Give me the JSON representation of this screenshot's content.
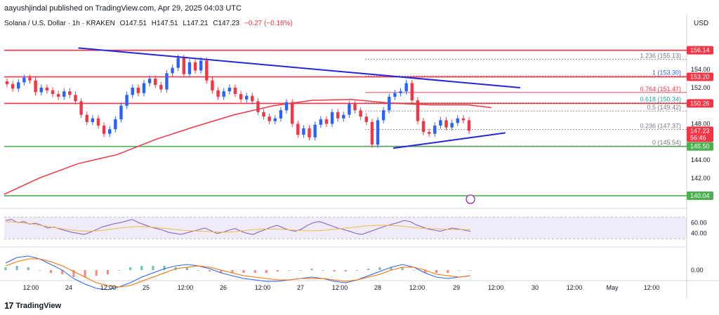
{
  "header": {
    "publisher": "aayushjindal published on TradingView.com, Apr 29, 2025 04:03 UTC"
  },
  "legend": {
    "symbol": "Solana / U.S. Dollar · 1h · KRAKEN",
    "open": "O147.51",
    "high": "H147.51",
    "low": "L147.21",
    "close": "C147.23",
    "change": "−0.27 (−0.18%)"
  },
  "currency": "USD",
  "footer": {
    "brand": "TradingView",
    "logo": "17"
  },
  "colors": {
    "up": "#2962ff",
    "down": "#f23645",
    "ma": "#f23645",
    "trendline": "#2525d9",
    "support": "#4caf50",
    "resistance": "#f23645",
    "fib": "#9c27b0",
    "rsi": "#7e57c2",
    "rsi_ma": "#f0b84a",
    "macd": "#2962ff",
    "signal": "#ff6d00"
  },
  "chart_data": {
    "type": "candlestick",
    "y_range": [
      138.8,
      158.6
    ],
    "price_axis_ticks": [
      "154.00",
      "152.00",
      "148.00",
      "144.00",
      "142.00"
    ],
    "x_axis_labels": [
      "12:00",
      "24",
      "12:00",
      "25",
      "12:00",
      "26",
      "12:00",
      "27",
      "12:00",
      "28",
      "12:00",
      "29",
      "12:00",
      "30",
      "12:00",
      "May",
      "12:00"
    ],
    "price_tags": [
      {
        "label": "156.14",
        "value": 156.14,
        "color": "#f23645"
      },
      {
        "label": "153.20",
        "value": 153.2,
        "color": "#f23645"
      },
      {
        "label": "150.26",
        "value": 150.26,
        "color": "#f23645"
      },
      {
        "label": "147.23",
        "value": 147.23,
        "color": "#f23645",
        "sub": "56:46"
      },
      {
        "label": "145.50",
        "value": 145.5,
        "color": "#4caf50"
      },
      {
        "label": "140.04",
        "value": 140.04,
        "color": "#4caf50"
      }
    ],
    "horizontal_levels": [
      {
        "value": 156.14,
        "kind": "resistance"
      },
      {
        "value": 153.2,
        "kind": "resistance"
      },
      {
        "value": 150.26,
        "kind": "resistance"
      },
      {
        "value": 145.5,
        "kind": "support"
      },
      {
        "value": 140.04,
        "kind": "support"
      }
    ],
    "fibonacci": [
      {
        "ratio": "1.236",
        "label": "1.236 (155.13)",
        "value": 155.13
      },
      {
        "ratio": "1",
        "label": "1 (153.30)",
        "value": 153.3
      },
      {
        "ratio": "0.764",
        "label": "0.764 (151.47)",
        "value": 151.47
      },
      {
        "ratio": "0.618",
        "label": "0.618 (150.34)",
        "value": 150.34
      },
      {
        "ratio": "0.5",
        "label": "0.5 (149.42)",
        "value": 149.42
      },
      {
        "ratio": "0.236",
        "label": "0.236 (147.37)",
        "value": 147.37
      },
      {
        "ratio": "0",
        "label": "0 (145.54)",
        "value": 145.54
      }
    ],
    "trendlines": [
      {
        "name": "upper",
        "points": [
          [
            24.0,
            156.4
          ],
          [
            29.67,
            152.0
          ]
        ]
      },
      {
        "name": "lower",
        "points": [
          [
            28.04,
            145.3
          ],
          [
            29.48,
            147.0
          ]
        ]
      }
    ],
    "candle_closes": [
      152.4,
      151.9,
      152.6,
      153.1,
      152.8,
      151.5,
      152.0,
      151.7,
      151.3,
      151.0,
      151.6,
      151.2,
      150.5,
      149.0,
      148.2,
      148.6,
      147.8,
      146.9,
      147.4,
      148.5,
      150.0,
      151.2,
      152.0,
      151.4,
      152.5,
      153.0,
      152.3,
      151.8,
      153.6,
      154.2,
      155.3,
      153.5,
      154.8,
      153.9,
      155.0,
      152.8,
      151.7,
      151.0,
      151.6,
      152.0,
      151.3,
      150.7,
      151.1,
      150.5,
      149.3,
      148.8,
      148.3,
      148.6,
      149.5,
      150.4,
      148.0,
      146.8,
      147.5,
      146.5,
      147.9,
      148.5,
      148.0,
      149.3,
      148.6,
      149.0,
      150.2,
      149.5,
      148.8,
      148.2,
      145.7,
      148.4,
      149.5,
      151.0,
      151.4,
      151.6,
      152.5,
      150.6,
      148.3,
      147.1,
      146.9,
      147.8,
      148.4,
      147.6,
      148.1,
      148.6,
      148.4,
      147.23
    ],
    "moving_average": [
      [
        23.05,
        140.2
      ],
      [
        23.5,
        142.0
      ],
      [
        24.0,
        143.6
      ],
      [
        24.5,
        144.6
      ],
      [
        25.0,
        146.3
      ],
      [
        25.5,
        147.7
      ],
      [
        26.0,
        149.0
      ],
      [
        26.5,
        150.0
      ],
      [
        27.0,
        150.6
      ],
      [
        27.5,
        150.7
      ],
      [
        28.0,
        150.3
      ],
      [
        28.5,
        150.1
      ],
      [
        29.0,
        150.1
      ],
      [
        29.3,
        149.8
      ]
    ],
    "rsi": {
      "upper_band": 70,
      "lower_band": 30,
      "ticks": [
        "60.00",
        "40.00"
      ],
      "values": [
        64,
        66,
        60,
        62,
        57,
        59,
        55,
        50,
        52,
        48,
        45,
        42,
        40,
        38,
        42,
        47,
        52,
        55,
        58,
        60,
        63,
        66,
        60,
        56,
        52,
        49,
        46,
        42,
        40,
        38,
        41,
        44,
        47,
        50,
        45,
        40,
        42,
        46,
        49,
        44,
        40,
        38,
        43,
        47,
        52,
        55,
        50,
        46,
        44,
        48,
        55,
        60,
        62,
        58,
        54,
        50,
        47,
        44,
        40,
        38,
        42,
        46,
        50,
        54,
        57,
        60,
        64,
        62,
        56,
        52,
        48,
        46,
        44,
        47,
        50,
        48,
        46,
        44
      ]
    },
    "rsi_ma": [
      62,
      61,
      59,
      56,
      53,
      50,
      47,
      45,
      44,
      45,
      47,
      50,
      52,
      53,
      52,
      50,
      48,
      46,
      45,
      44,
      43,
      42,
      43,
      45,
      47,
      48,
      48,
      47,
      46,
      45,
      45,
      46,
      48,
      50,
      52,
      54,
      55,
      55,
      54,
      52,
      50,
      49,
      48,
      47,
      47,
      47
    ],
    "macd": {
      "ticks": [
        "0.00"
      ],
      "macd_line": [
        0.5,
        0.9,
        1.0,
        0.8,
        0.4,
        0.0,
        -0.6,
        -1.0,
        -1.3,
        -1.4,
        -1.2,
        -0.9,
        -0.5,
        -0.2,
        0.1,
        0.3,
        0.4,
        0.3,
        0.1,
        -0.2,
        -0.4,
        -0.6,
        -0.7,
        -0.8,
        -0.8,
        -0.7,
        -0.6,
        -0.5,
        -0.6,
        -0.8,
        -0.9,
        -0.7,
        -0.4,
        -0.1,
        0.2,
        0.4,
        0.2,
        -0.2,
        -0.5,
        -0.6,
        -0.5,
        -0.4
      ],
      "signal_line": [
        0.3,
        0.6,
        0.8,
        0.8,
        0.6,
        0.3,
        -0.1,
        -0.5,
        -0.9,
        -1.1,
        -1.2,
        -1.1,
        -0.8,
        -0.5,
        -0.2,
        0.1,
        0.2,
        0.3,
        0.2,
        0.0,
        -0.2,
        -0.4,
        -0.5,
        -0.6,
        -0.7,
        -0.7,
        -0.6,
        -0.6,
        -0.6,
        -0.7,
        -0.8,
        -0.7,
        -0.5,
        -0.3,
        0.0,
        0.2,
        0.2,
        0.0,
        -0.3,
        -0.4,
        -0.5,
        -0.4
      ]
    }
  }
}
